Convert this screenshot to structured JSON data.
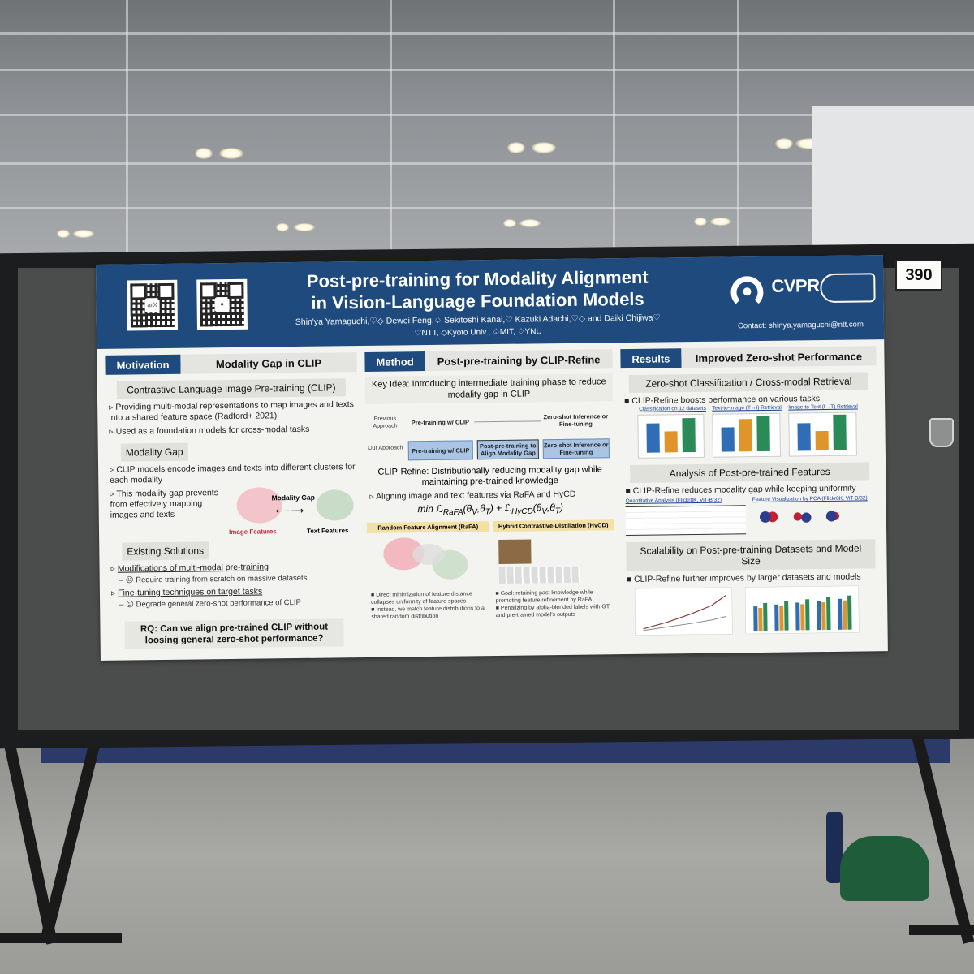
{
  "booth_number": "390",
  "poster": {
    "title_line1": "Post-pre-training for Modality Alignment",
    "title_line2": "in Vision-Language Foundation Models",
    "authors": "Shin'ya Yamaguchi,♡◇ Dewei Feng,♤ Sekitoshi Kanai,♡ Kazuki Adachi,♡◇ and Daiki Chijiwa♡",
    "affiliations": "♡NTT, ◇Kyoto Univ., ♤MIT, ♢YNU",
    "contact": "Contact: shinya.yamaguchi@ntt.com",
    "conference": "CVPR",
    "motivation": {
      "tag": "Motivation",
      "title": "Modality Gap in CLIP",
      "sub1": "Contrastive Language Image Pre-training (CLIP)",
      "b1": "Providing multi-modal representations to map images and texts into a shared feature space (Radford+ 2021)",
      "b2": "Used as a foundation models for cross-modal tasks",
      "sub2": "Modality Gap",
      "b3": "CLIP models encode images and texts into different clusters for each modality",
      "b4": "This modality gap prevents from effectively mapping images and texts",
      "gap_label": "Modality Gap",
      "img_label": "Image Features",
      "txt_label": "Text Features",
      "sub3": "Existing Solutions",
      "s1": "Modifications of multi-modal pre-training",
      "s1a": "Require training from scratch on massive datasets",
      "s2": "Fine-tuning techniques on target tasks",
      "s2a": "Degrade general zero-shot performance of CLIP",
      "rq": "RQ: Can we align pre-trained CLIP without loosing general zero-shot performance?"
    },
    "method": {
      "tag": "Method",
      "title": "Post-pre-training by CLIP-Refine",
      "key_idea": "Key Idea: Introducing intermediate training phase to reduce modality gap in CLIP",
      "prev": "Previous Approach",
      "ours": "Our Approach",
      "pt": "Pre-training w/ CLIP",
      "ppt": "Post-pre-training to Align Modality Gap",
      "zs": "Zero-shot Inference or Fine-tuning",
      "refine": "CLIP-Refine: Distributionally reducing modality gap while maintaining pre-trained knowledge",
      "b1": "Aligning image and text features via RaFA and HyCD",
      "rafa": "Random Feature Alignment (RaFA)",
      "hycd": "Hybrid Contrastive-Distillation (HyCD)",
      "r1": "Direct minimization of feature distance collapses uniformity of feature spaces",
      "r2": "Instead, we match feature distributions to a shared random distribution",
      "h1": "Goal: retaining past knowledge while promoting feature refinement by RaFA",
      "h2": "Penalizing by alpha-blended labels with GT and pre-trained model's outputs"
    },
    "results": {
      "tag": "Results",
      "title": "Improved Zero-shot Performance",
      "sub1": "Zero-shot Classification / Cross-modal Retrieval",
      "b1": "CLIP-Refine boosts performance on various tasks",
      "c1": "Classification on 12 datasets",
      "c2": "Text-to-Image (T→I) Retrieval",
      "c3": "Image-to-Text (I→T) Retrieval",
      "sub2": "Analysis of Post-pre-trained Features",
      "b2": "CLIP-Refine reduces modality gap while keeping uniformity",
      "qa": "Quantitative Analysis (Flickr8K, ViT-B/32)",
      "fv": "Feature Visualization by PCA (Flickr8K, ViT-B/32)",
      "sub3": "Scalability on Post-pre-training Datasets and Model Size",
      "b3": "CLIP-Refine further improves by larger datasets and models"
    }
  },
  "colors": {
    "poster_blue": "#1f4a7d",
    "bar_blue": "#2f6db5",
    "bar_orange": "#e0952b",
    "bar_green": "#2a8a58"
  }
}
